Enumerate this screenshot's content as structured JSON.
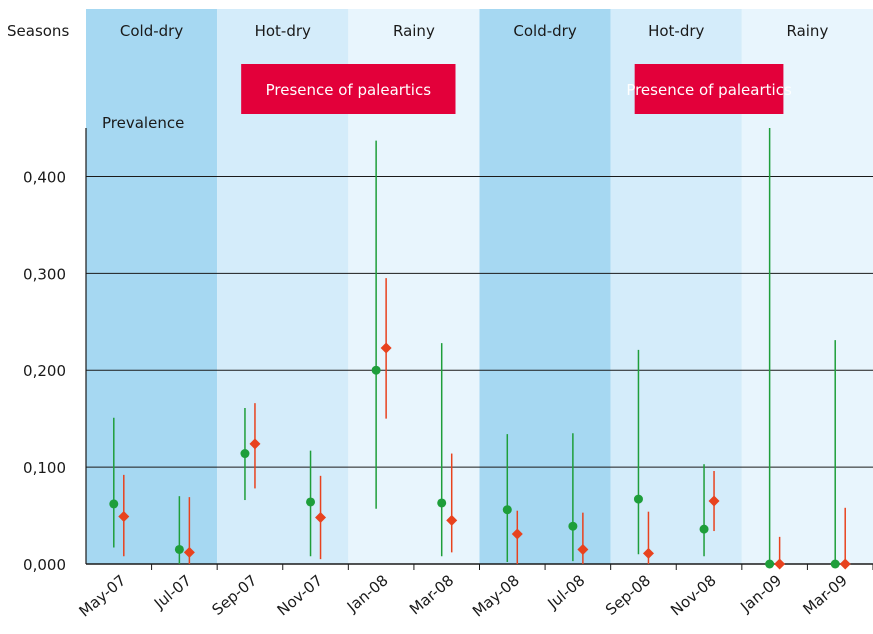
{
  "chart_data": {
    "type": "scatter",
    "row_label": "Seasons",
    "ylabel": "Prevalence",
    "ylim": [
      0,
      0.45
    ],
    "yticks": [
      "0,000",
      "0,100",
      "0,200",
      "0,300",
      "0,400"
    ],
    "ytick_values": [
      0,
      0.1,
      0.2,
      0.3,
      0.4
    ],
    "grid": true,
    "categories": [
      "May-07",
      "Jul-07",
      "Sep-07",
      "Nov-07",
      "Jan-08",
      "Mar-08",
      "May-08",
      "Jul-08",
      "Sep-08",
      "Nov-08",
      "Jan-09",
      "Mar-09"
    ],
    "seasons": [
      {
        "label": "Cold-dry",
        "from": "May-07",
        "to": "Jul-07",
        "color": "#a6d8f2"
      },
      {
        "label": "Hot-dry",
        "from": "Sep-07",
        "to": "Nov-07",
        "color": "#d4ecfa"
      },
      {
        "label": "Rainy",
        "from": "Jan-08",
        "to": "Mar-08",
        "color": "#e8f5fd"
      },
      {
        "label": "Cold-dry",
        "from": "May-08",
        "to": "Jul-08",
        "color": "#a6d8f2"
      },
      {
        "label": "Hot-dry",
        "from": "Sep-08",
        "to": "Nov-08",
        "color": "#d4ecfa"
      },
      {
        "label": "Rainy",
        "from": "Jan-09",
        "to": "Mar-09",
        "color": "#e8f5fd"
      }
    ],
    "banners": [
      {
        "label": "Presence of paleartics",
        "from": "Sep-07",
        "to": "Mar-08",
        "color": "#e3003a"
      },
      {
        "label": "Presence of paleartics",
        "from": "Sep-08",
        "to": "Jan-09",
        "color": "#e3003a"
      }
    ],
    "series": [
      {
        "marker": "circle",
        "color": "#1e9e3a",
        "values": [
          0.062,
          0.015,
          0.114,
          0.064,
          0.2,
          0.063,
          0.056,
          0.039,
          0.067,
          0.036,
          0.0,
          0.0
        ],
        "lower": [
          0.017,
          0.0,
          0.066,
          0.008,
          0.057,
          0.008,
          0.002,
          0.003,
          0.01,
          0.008,
          0.0,
          0.0
        ],
        "upper": [
          0.151,
          0.07,
          0.161,
          0.117,
          0.437,
          0.228,
          0.134,
          0.135,
          0.221,
          0.103,
          0.45,
          0.231
        ]
      },
      {
        "marker": "diamond",
        "color": "#e8421e",
        "values": [
          0.049,
          0.012,
          0.124,
          0.048,
          0.223,
          0.045,
          0.031,
          0.015,
          0.011,
          0.065,
          0.0,
          0.0
        ],
        "lower": [
          0.008,
          0.0,
          0.078,
          0.005,
          0.15,
          0.012,
          0.0,
          0.0,
          0.0,
          0.034,
          0.0,
          0.0
        ],
        "upper": [
          0.092,
          0.069,
          0.166,
          0.091,
          0.295,
          0.114,
          0.055,
          0.053,
          0.054,
          0.096,
          0.028,
          0.058
        ]
      }
    ]
  }
}
